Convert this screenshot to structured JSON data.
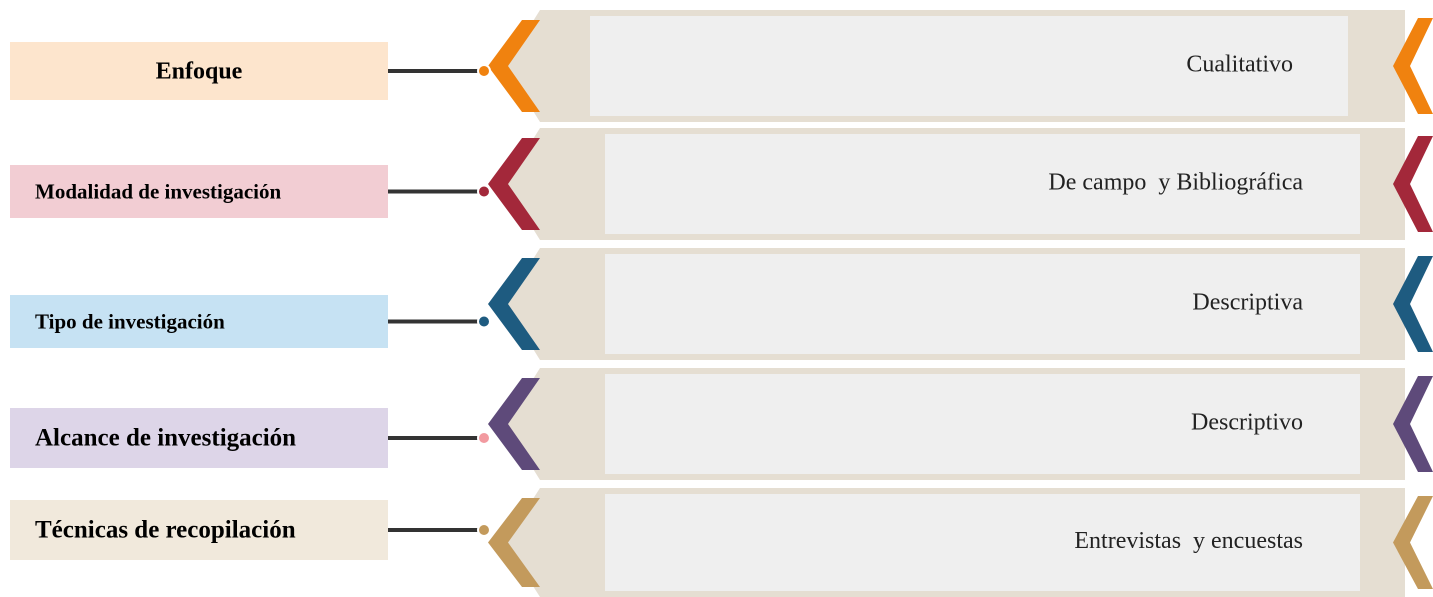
{
  "rows": [
    {
      "label": "Enfoque",
      "value": "Cualitativo"
    },
    {
      "label": "Modalidad de investigación",
      "value": "De campo  y Bibliográfica"
    },
    {
      "label": "Tipo de investigación",
      "value": "Descriptiva"
    },
    {
      "label": "Alcance de investigación",
      "value": "Descriptivo"
    },
    {
      "label": "Técnicas de recopilación",
      "value": "Entrevistas  y encuestas"
    }
  ]
}
